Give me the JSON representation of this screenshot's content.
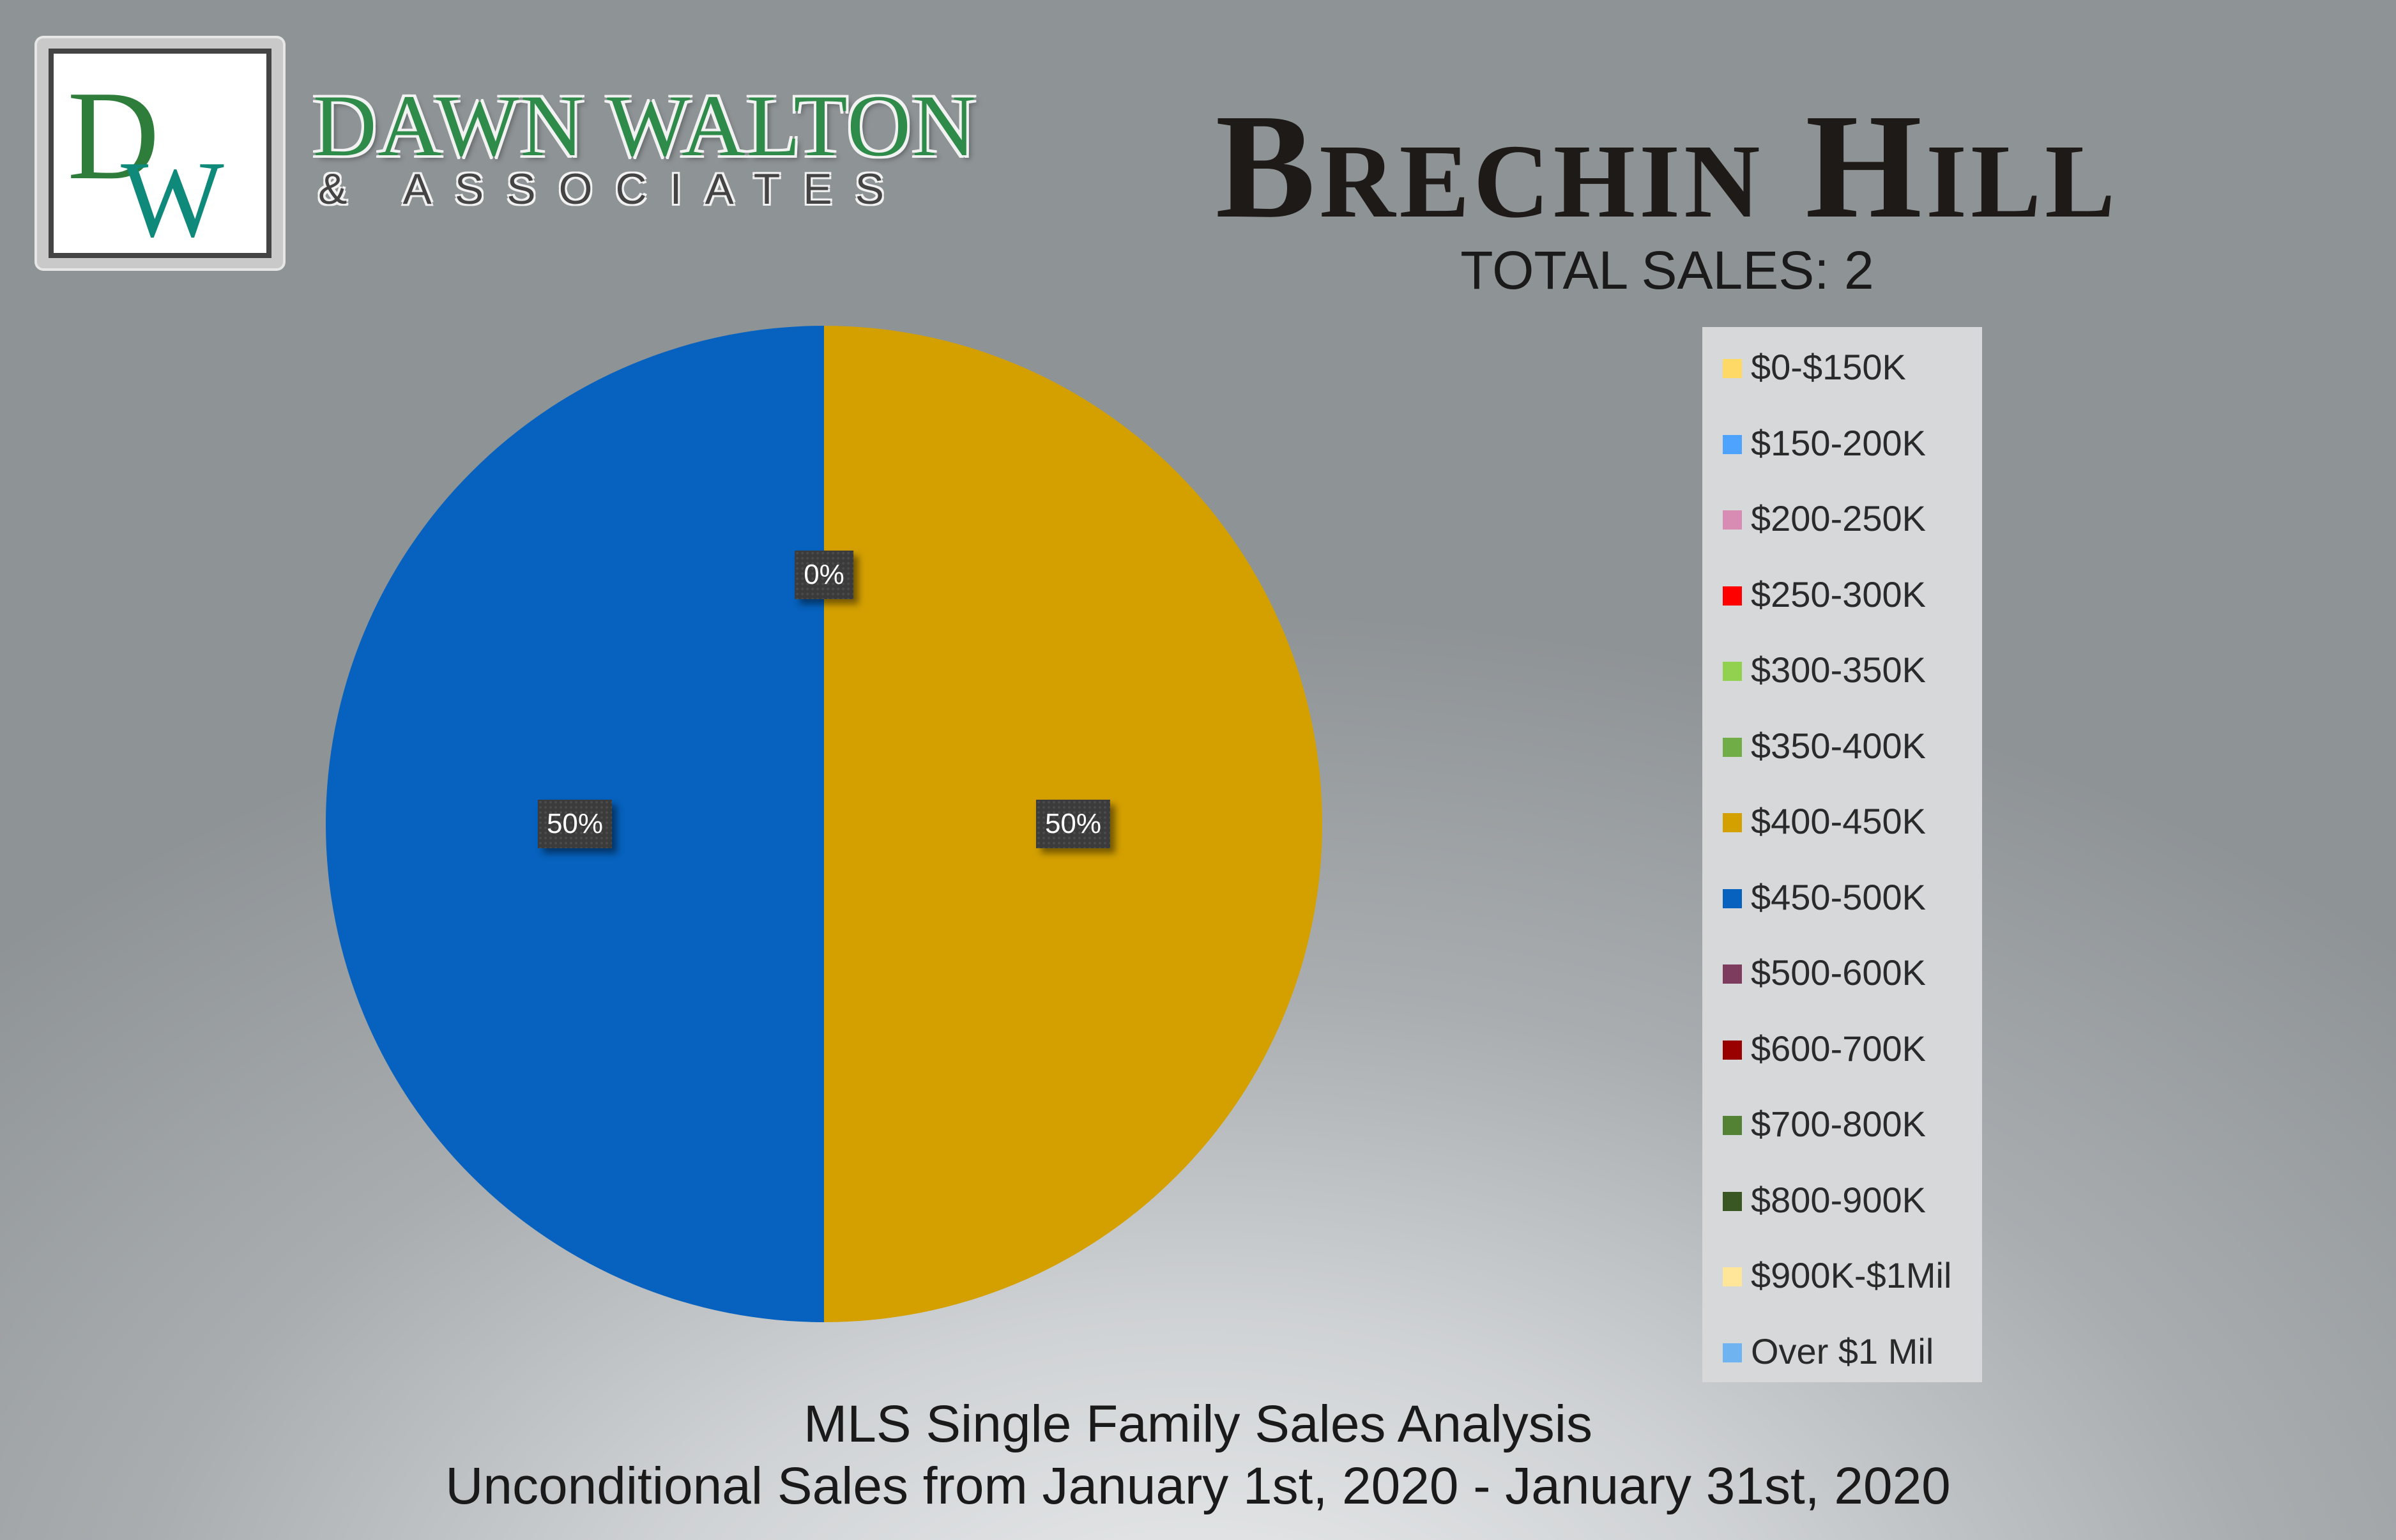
{
  "brand": {
    "logo_text": "DW",
    "name": "DAWN WALTON",
    "sub": "& ASSOCIATES",
    "logo_icon": "dw-monogram-logo",
    "colors": {
      "d": "#2e7d3a",
      "w": "#0f8a7a"
    }
  },
  "header": {
    "title": "Brechin Hill",
    "total_sales": "TOTAL SALES:  2"
  },
  "chart_data": {
    "type": "pie",
    "slices": [
      {
        "label": "$0-$150K",
        "value": 0,
        "color": "#ffd966"
      },
      {
        "label": "$150-200K",
        "value": 0,
        "color": "#4da3ff"
      },
      {
        "label": "$200-250K",
        "value": 0,
        "color": "#d98cb3"
      },
      {
        "label": "$250-300K",
        "value": 0,
        "color": "#ff0000"
      },
      {
        "label": "$300-350K",
        "value": 0,
        "color": "#92d050"
      },
      {
        "label": "$350-400K",
        "value": 0,
        "color": "#70ad47"
      },
      {
        "label": "$400-450K",
        "value": 50,
        "color": "#d4a000"
      },
      {
        "label": "$450-500K",
        "value": 50,
        "color": "#0662be"
      },
      {
        "label": "$500-600K",
        "value": 0,
        "color": "#7d3c5e"
      },
      {
        "label": "$600-700K",
        "value": 0,
        "color": "#990000"
      },
      {
        "label": "$700-800K",
        "value": 0,
        "color": "#548235"
      },
      {
        "label": "$800-900K",
        "value": 0,
        "color": "#385723"
      },
      {
        "label": "$900K-$1Mil",
        "value": 0,
        "color": "#ffe699"
      },
      {
        "label": "Over $1 Mil",
        "value": 0,
        "color": "#6fb3f0"
      }
    ],
    "data_labels": [
      "0%",
      "50%",
      "50%"
    ],
    "legend_position": "right"
  },
  "footer": {
    "line1": "MLS Single Family Sales Analysis",
    "line2": "Unconditional Sales from January 1st, 2020 - January 31st, 2020"
  }
}
